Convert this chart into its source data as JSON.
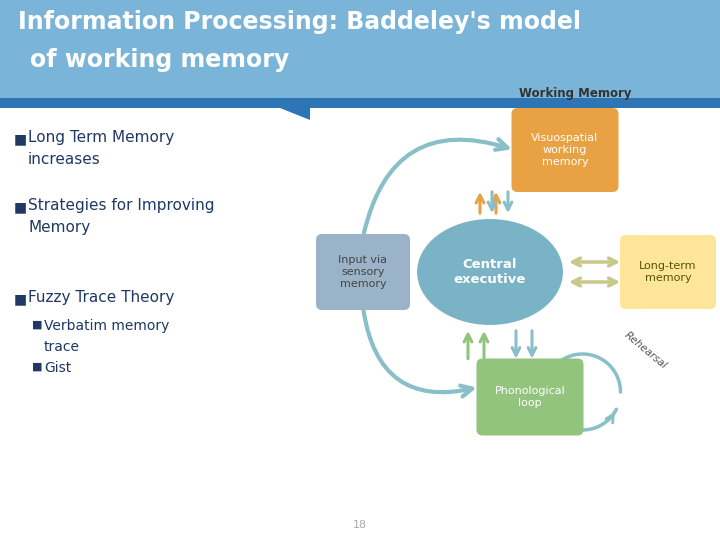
{
  "title_line1": "Information Processing: Baddeley's model",
  "title_line2": "of working memory",
  "title_bg_top": "#7ab4d8",
  "title_bg_bottom": "#5b9bd5",
  "title_strip_color": "#2e75b6",
  "title_text_color": "#ffffff",
  "bg_color": "#ffffff",
  "bullet_color": "#1f3864",
  "bullet_items": [
    "Long Term Memory\nincreases",
    "Strategies for Improving\nMemory",
    "Fuzzy Trace Theory"
  ],
  "sub_bullets": [
    "Verbatim memory\ntrace",
    "Gist"
  ],
  "diagram": {
    "working_memory_label": "Working Memory",
    "central_exec_label": "Central\nexecutive",
    "central_exec_color": "#7ab3c5",
    "visuospatial_label": "Visuospatial\nworking\nmemory",
    "visuospatial_color": "#e8a244",
    "phonological_label": "Phonological\nloop",
    "phonological_color": "#93c47d",
    "longterm_label": "Long-term\nmemory",
    "longterm_color": "#ffe599",
    "sensory_label": "Input via\nsensory\nmemory",
    "sensory_color": "#9ab3c8",
    "rehearsal_label": "Rehearsal",
    "arrow_color_teal": "#88bfc8",
    "arrow_color_orange": "#e8a244",
    "arrow_color_green": "#93c47d",
    "arrow_color_yellow": "#c8c88a",
    "large_arc_color": "#88bfc8"
  },
  "page_number": "18",
  "footer_text_color": "#aaaaaa"
}
